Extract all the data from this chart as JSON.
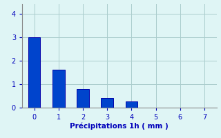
{
  "categories": [
    0,
    1,
    2,
    3,
    4,
    5,
    6,
    7
  ],
  "values": [
    3.0,
    1.6,
    0.8,
    0.4,
    0.25,
    0,
    0,
    0
  ],
  "bar_color": "#0044cc",
  "bar_edge_color": "#0000aa",
  "background_color": "#dff5f5",
  "grid_color": "#aacccc",
  "xlabel": "Précipitations 1h ( mm )",
  "xlabel_color": "#0000bb",
  "tick_color": "#0000bb",
  "ylim": [
    0,
    4.4
  ],
  "xlim": [
    -0.5,
    7.5
  ],
  "yticks": [
    0,
    1,
    2,
    3,
    4
  ],
  "xticks": [
    0,
    1,
    2,
    3,
    4,
    5,
    6,
    7
  ],
  "bar_width": 0.5
}
